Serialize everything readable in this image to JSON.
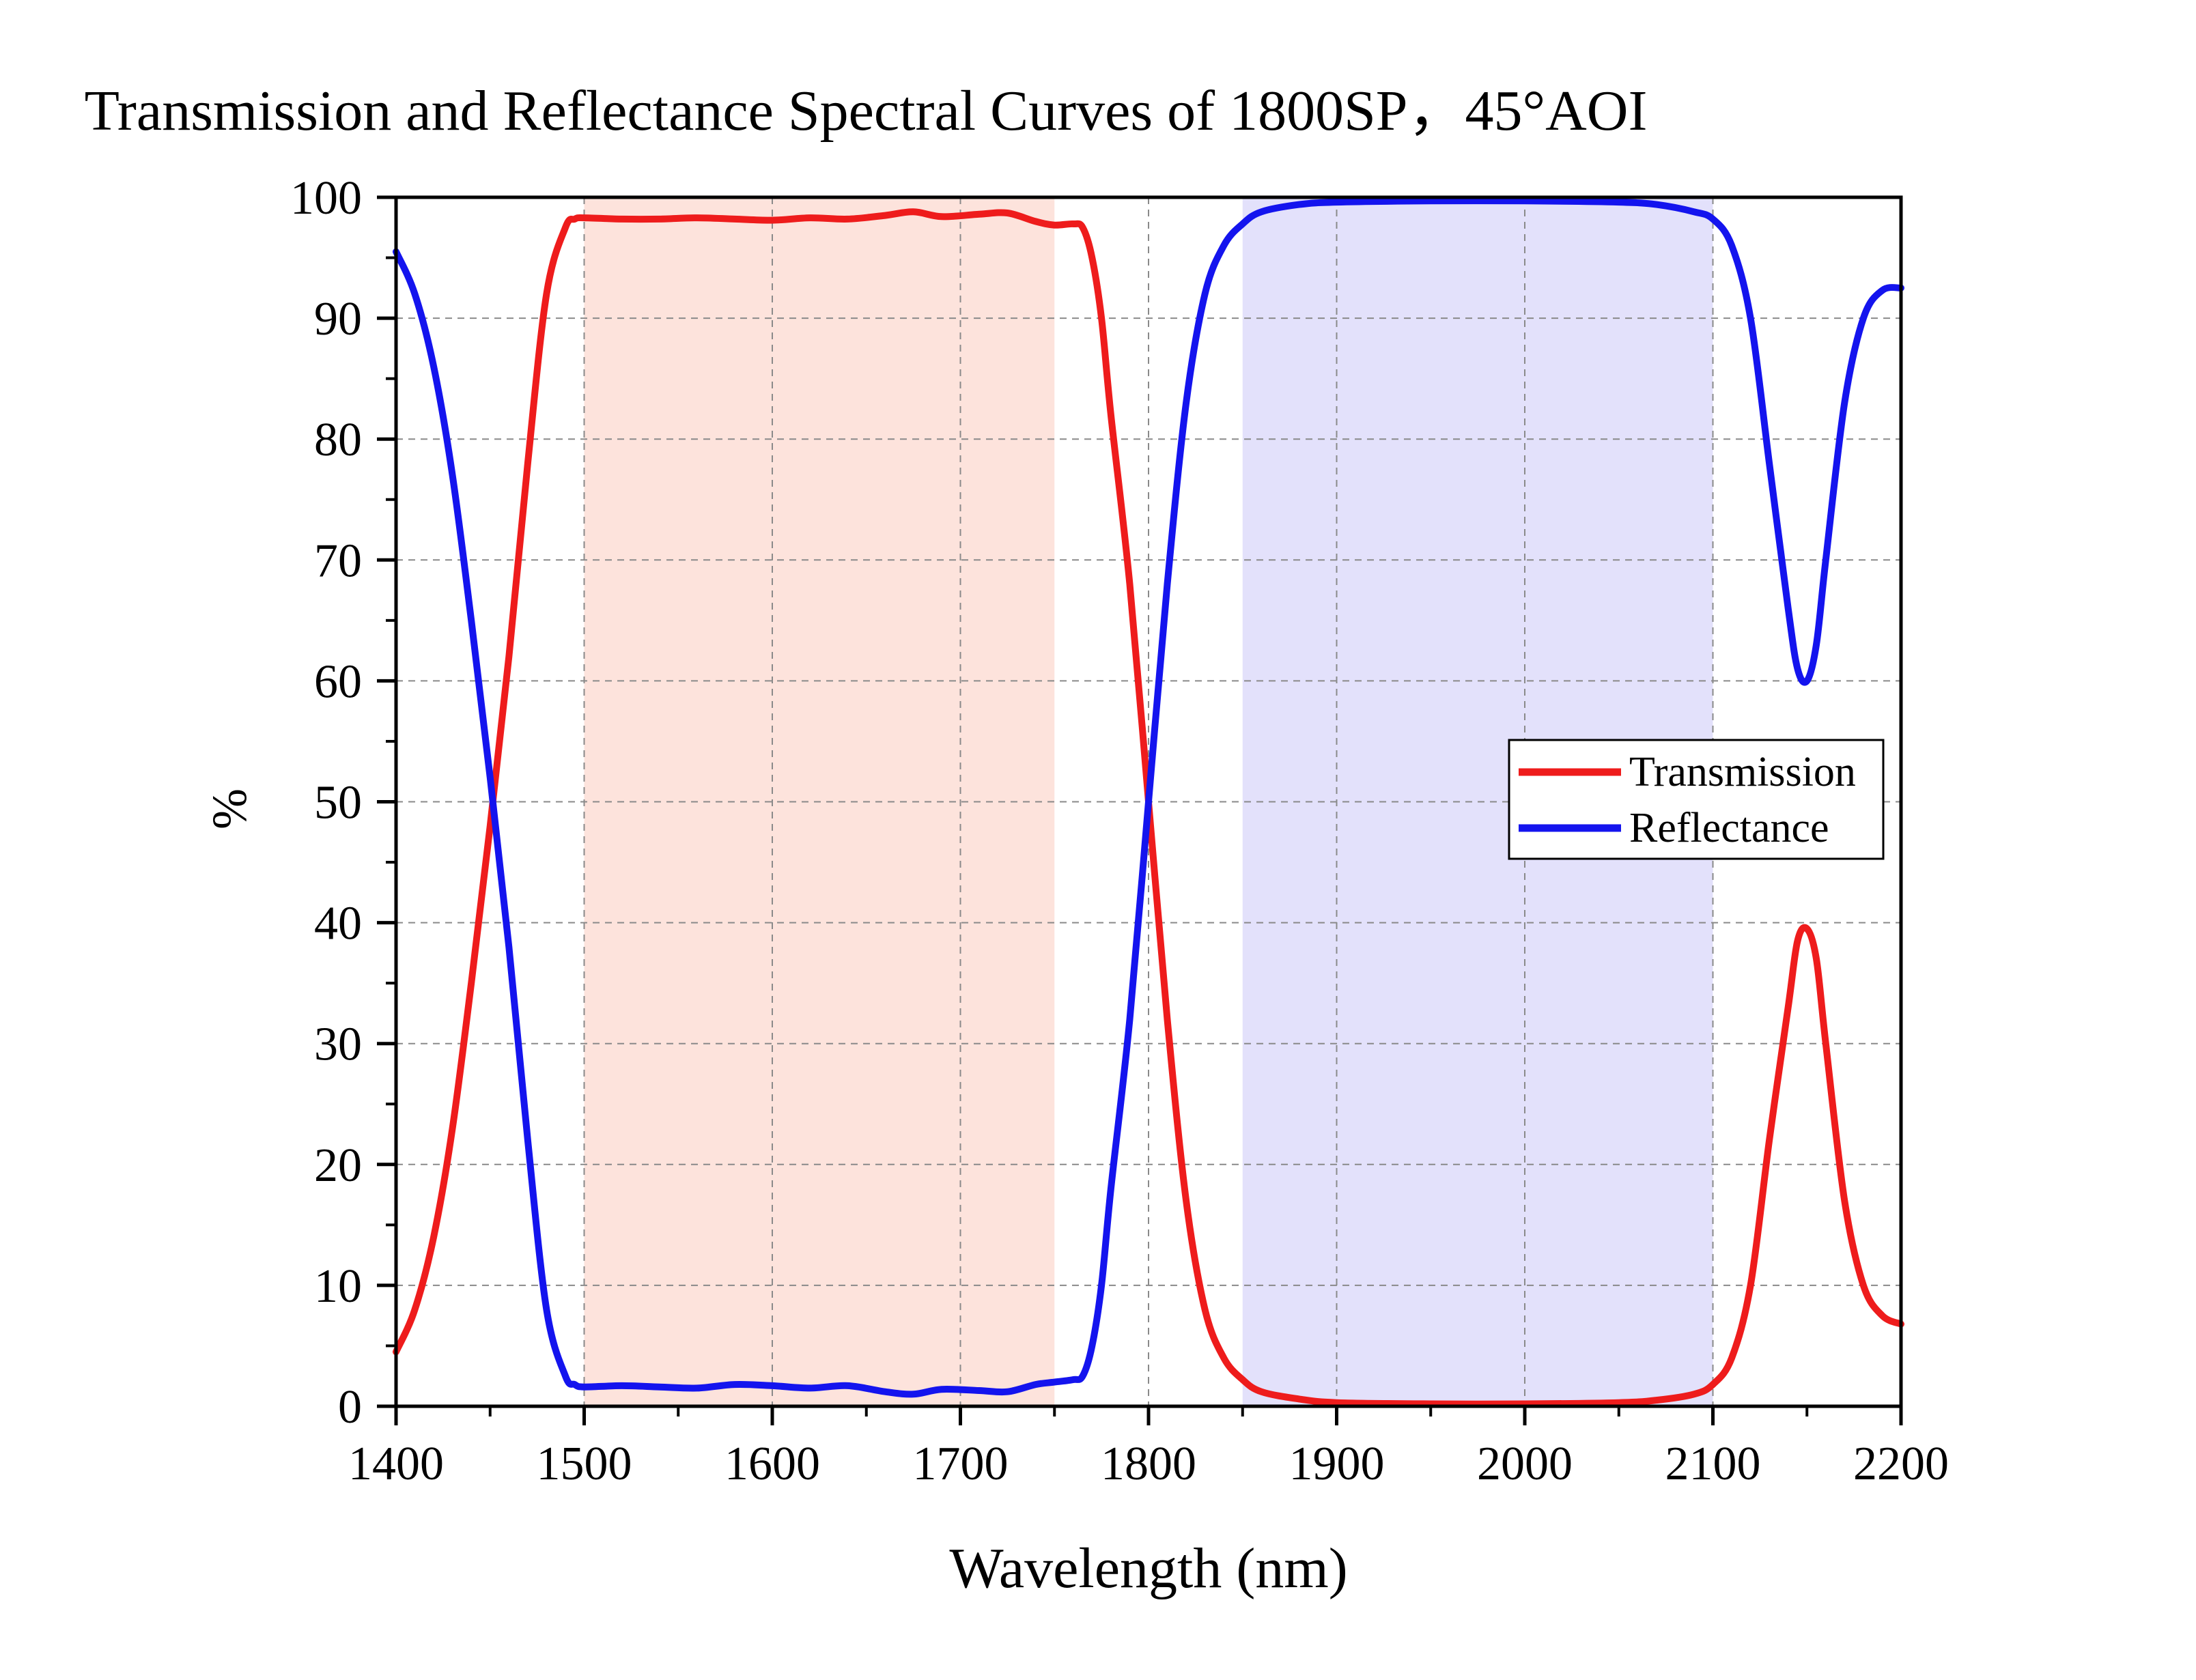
{
  "chart_data": {
    "type": "line",
    "title": "Transmission and Reflectance Spectral Curves of 1800SP，45°AOI",
    "xlabel": "Wavelength (nm)",
    "ylabel": "%",
    "xlim": [
      1400,
      2200
    ],
    "ylim": [
      0,
      100
    ],
    "xticks": [
      "1400",
      "1500",
      "1600",
      "1700",
      "1800",
      "1900",
      "2000",
      "2100",
      "2200"
    ],
    "yticks": [
      "0",
      "10",
      "20",
      "30",
      "40",
      "50",
      "60",
      "70",
      "80",
      "90",
      "100"
    ],
    "grid": true,
    "legend_position": "right-middle",
    "shaded_bands": [
      {
        "x0": 1500,
        "x1": 1750,
        "color": "#fde3dc"
      },
      {
        "x0": 1850,
        "x1": 2100,
        "color": "#e3e1fb"
      }
    ],
    "series": [
      {
        "name": "Transmission",
        "color": "#ee1c1c",
        "x": [
          1400,
          1410,
          1420,
          1430,
          1440,
          1450,
          1460,
          1470,
          1480,
          1490,
          1495,
          1500,
          1520,
          1540,
          1560,
          1580,
          1600,
          1620,
          1640,
          1660,
          1675,
          1690,
          1710,
          1725,
          1740,
          1750,
          1760,
          1765,
          1770,
          1775,
          1780,
          1790,
          1800,
          1810,
          1820,
          1830,
          1840,
          1850,
          1860,
          1880,
          1900,
          1950,
          2000,
          2050,
          2070,
          2090,
          2100,
          2110,
          2120,
          2130,
          2140,
          2145,
          2150,
          2155,
          2160,
          2170,
          2180,
          2190,
          2200
        ],
        "y": [
          4.5,
          8,
          14,
          23,
          35,
          48,
          62,
          78,
          92,
          97.5,
          98.2,
          98.3,
          98.2,
          98.2,
          98.3,
          98.2,
          98.1,
          98.3,
          98.2,
          98.5,
          98.8,
          98.4,
          98.6,
          98.7,
          98.0,
          97.7,
          97.8,
          97.5,
          95,
          90,
          82,
          68,
          50,
          32,
          17,
          8,
          4,
          2.2,
          1.2,
          0.6,
          0.3,
          0.2,
          0.2,
          0.3,
          0.5,
          1.0,
          1.8,
          4,
          10,
          22,
          33,
          38.5,
          39.5,
          37,
          30,
          17,
          10,
          7.5,
          6.8
        ]
      },
      {
        "name": "Reflectance",
        "color": "#1414ee",
        "x": [
          1400,
          1410,
          1420,
          1430,
          1440,
          1450,
          1460,
          1470,
          1480,
          1490,
          1495,
          1500,
          1520,
          1540,
          1560,
          1580,
          1600,
          1620,
          1640,
          1660,
          1675,
          1690,
          1710,
          1725,
          1740,
          1750,
          1760,
          1765,
          1770,
          1775,
          1780,
          1790,
          1800,
          1810,
          1820,
          1830,
          1840,
          1850,
          1860,
          1880,
          1900,
          1950,
          2000,
          2050,
          2070,
          2090,
          2100,
          2110,
          2120,
          2130,
          2140,
          2145,
          2150,
          2155,
          2160,
          2170,
          2180,
          2190,
          2200
        ],
        "y": [
          95.5,
          92,
          86,
          77,
          65,
          52,
          38,
          22,
          8,
          2.5,
          1.8,
          1.6,
          1.7,
          1.6,
          1.5,
          1.8,
          1.7,
          1.5,
          1.7,
          1.2,
          1.0,
          1.4,
          1.3,
          1.2,
          1.8,
          2.0,
          2.2,
          2.5,
          5,
          10,
          18,
          32,
          50,
          68,
          83,
          92,
          96,
          97.8,
          98.8,
          99.4,
          99.6,
          99.7,
          99.7,
          99.6,
          99.4,
          98.8,
          98.2,
          96,
          90,
          78,
          66,
          61,
          60,
          63,
          70,
          83,
          90,
          92.3,
          92.5
        ]
      }
    ]
  }
}
